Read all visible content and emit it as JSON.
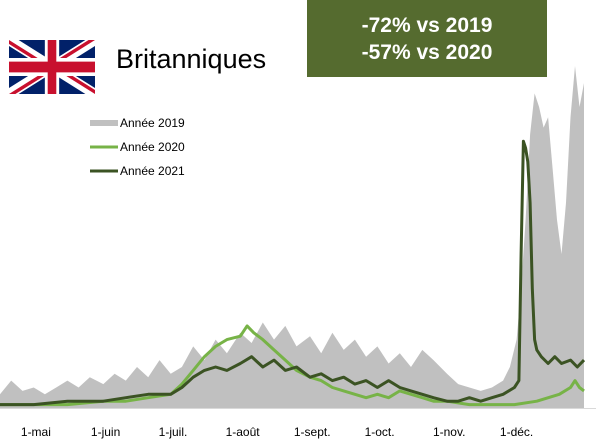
{
  "header": {
    "title": "Britanniques",
    "stats": [
      "-72% vs 2019",
      "-57% vs 2020"
    ]
  },
  "colors": {
    "flag_blue": "#012169",
    "flag_red": "#C8102E",
    "stats_box_bg": "#556B2F",
    "s2019": "#C0C0C0",
    "s2020": "#77B347",
    "s2021": "#3B5323"
  },
  "chart_data": {
    "type": "area",
    "xlim": [
      "2021-04-15",
      "2021-12-31"
    ],
    "x_ticks": [
      {
        "date": "2021-05-01",
        "label": "1-mai"
      },
      {
        "date": "2021-06-01",
        "label": "1-juin"
      },
      {
        "date": "2021-07-01",
        "label": "1-juil."
      },
      {
        "date": "2021-08-01",
        "label": "1-août"
      },
      {
        "date": "2021-09-01",
        "label": "1-sept."
      },
      {
        "date": "2021-10-01",
        "label": "1-oct."
      },
      {
        "date": "2021-11-01",
        "label": "1-nov."
      },
      {
        "date": "2021-12-01",
        "label": "1-déc."
      }
    ],
    "ylim": [
      0,
      100
    ],
    "y_axis_labels": false,
    "legend_position": "top-left",
    "series": [
      {
        "name": "Année 2019",
        "style": "area",
        "color": "#C0C0C0",
        "points": [
          [
            "2021-04-15",
            4
          ],
          [
            "2021-04-20",
            8
          ],
          [
            "2021-04-25",
            5
          ],
          [
            "2021-04-30",
            6
          ],
          [
            "2021-05-05",
            4
          ],
          [
            "2021-05-10",
            6
          ],
          [
            "2021-05-15",
            8
          ],
          [
            "2021-05-20",
            6
          ],
          [
            "2021-05-25",
            9
          ],
          [
            "2021-05-31",
            7
          ],
          [
            "2021-06-05",
            10
          ],
          [
            "2021-06-10",
            8
          ],
          [
            "2021-06-15",
            12
          ],
          [
            "2021-06-20",
            9
          ],
          [
            "2021-06-25",
            14
          ],
          [
            "2021-06-30",
            10
          ],
          [
            "2021-07-05",
            12
          ],
          [
            "2021-07-10",
            18
          ],
          [
            "2021-07-15",
            14
          ],
          [
            "2021-07-20",
            20
          ],
          [
            "2021-07-25",
            16
          ],
          [
            "2021-07-31",
            22
          ],
          [
            "2021-08-05",
            19
          ],
          [
            "2021-08-10",
            25
          ],
          [
            "2021-08-15",
            20
          ],
          [
            "2021-08-20",
            24
          ],
          [
            "2021-08-25",
            18
          ],
          [
            "2021-08-31",
            21
          ],
          [
            "2021-09-05",
            16
          ],
          [
            "2021-09-10",
            22
          ],
          [
            "2021-09-15",
            17
          ],
          [
            "2021-09-20",
            20
          ],
          [
            "2021-09-25",
            15
          ],
          [
            "2021-09-30",
            18
          ],
          [
            "2021-10-05",
            13
          ],
          [
            "2021-10-10",
            16
          ],
          [
            "2021-10-15",
            12
          ],
          [
            "2021-10-20",
            17
          ],
          [
            "2021-10-25",
            14
          ],
          [
            "2021-10-31",
            10
          ],
          [
            "2021-11-05",
            7
          ],
          [
            "2021-11-10",
            6
          ],
          [
            "2021-11-15",
            5
          ],
          [
            "2021-11-20",
            6
          ],
          [
            "2021-11-25",
            8
          ],
          [
            "2021-11-28",
            12
          ],
          [
            "2021-12-01",
            20
          ],
          [
            "2021-12-03",
            35
          ],
          [
            "2021-12-05",
            55
          ],
          [
            "2021-12-07",
            80
          ],
          [
            "2021-12-09",
            92
          ],
          [
            "2021-12-11",
            88
          ],
          [
            "2021-12-13",
            82
          ],
          [
            "2021-12-15",
            85
          ],
          [
            "2021-12-17",
            70
          ],
          [
            "2021-12-19",
            55
          ],
          [
            "2021-12-21",
            45
          ],
          [
            "2021-12-23",
            60
          ],
          [
            "2021-12-25",
            85
          ],
          [
            "2021-12-27",
            100
          ],
          [
            "2021-12-29",
            88
          ],
          [
            "2021-12-31",
            95
          ]
        ]
      },
      {
        "name": "Année 2020",
        "style": "line",
        "color": "#77B347",
        "points": [
          [
            "2021-04-15",
            1
          ],
          [
            "2021-04-30",
            1
          ],
          [
            "2021-05-15",
            1
          ],
          [
            "2021-05-31",
            2
          ],
          [
            "2021-06-10",
            2
          ],
          [
            "2021-06-20",
            3
          ],
          [
            "2021-06-30",
            4
          ],
          [
            "2021-07-05",
            7
          ],
          [
            "2021-07-10",
            11
          ],
          [
            "2021-07-15",
            15
          ],
          [
            "2021-07-20",
            18
          ],
          [
            "2021-07-25",
            20
          ],
          [
            "2021-07-31",
            21
          ],
          [
            "2021-08-03",
            24
          ],
          [
            "2021-08-06",
            22
          ],
          [
            "2021-08-10",
            20
          ],
          [
            "2021-08-15",
            17
          ],
          [
            "2021-08-20",
            14
          ],
          [
            "2021-08-25",
            11
          ],
          [
            "2021-08-31",
            9
          ],
          [
            "2021-09-05",
            8
          ],
          [
            "2021-09-10",
            6
          ],
          [
            "2021-09-15",
            5
          ],
          [
            "2021-09-20",
            4
          ],
          [
            "2021-09-25",
            3
          ],
          [
            "2021-09-30",
            4
          ],
          [
            "2021-10-05",
            3
          ],
          [
            "2021-10-10",
            5
          ],
          [
            "2021-10-15",
            4
          ],
          [
            "2021-10-20",
            3
          ],
          [
            "2021-10-25",
            2
          ],
          [
            "2021-10-31",
            2
          ],
          [
            "2021-11-10",
            1
          ],
          [
            "2021-11-20",
            1
          ],
          [
            "2021-11-30",
            1
          ],
          [
            "2021-12-10",
            2
          ],
          [
            "2021-12-20",
            4
          ],
          [
            "2021-12-25",
            6
          ],
          [
            "2021-12-27",
            8
          ],
          [
            "2021-12-29",
            6
          ],
          [
            "2021-12-31",
            5
          ]
        ]
      },
      {
        "name": "Année 2021",
        "style": "line",
        "color": "#3B5323",
        "points": [
          [
            "2021-04-15",
            1
          ],
          [
            "2021-04-30",
            1
          ],
          [
            "2021-05-15",
            2
          ],
          [
            "2021-05-31",
            2
          ],
          [
            "2021-06-10",
            3
          ],
          [
            "2021-06-20",
            4
          ],
          [
            "2021-06-30",
            4
          ],
          [
            "2021-07-05",
            6
          ],
          [
            "2021-07-10",
            9
          ],
          [
            "2021-07-15",
            11
          ],
          [
            "2021-07-20",
            12
          ],
          [
            "2021-07-25",
            11
          ],
          [
            "2021-07-31",
            13
          ],
          [
            "2021-08-05",
            15
          ],
          [
            "2021-08-10",
            12
          ],
          [
            "2021-08-15",
            14
          ],
          [
            "2021-08-20",
            11
          ],
          [
            "2021-08-25",
            12
          ],
          [
            "2021-08-31",
            9
          ],
          [
            "2021-09-05",
            10
          ],
          [
            "2021-09-10",
            8
          ],
          [
            "2021-09-15",
            9
          ],
          [
            "2021-09-20",
            7
          ],
          [
            "2021-09-25",
            8
          ],
          [
            "2021-09-30",
            6
          ],
          [
            "2021-10-05",
            8
          ],
          [
            "2021-10-10",
            6
          ],
          [
            "2021-10-15",
            5
          ],
          [
            "2021-10-20",
            4
          ],
          [
            "2021-10-25",
            3
          ],
          [
            "2021-10-31",
            2
          ],
          [
            "2021-11-05",
            2
          ],
          [
            "2021-11-10",
            3
          ],
          [
            "2021-11-15",
            2
          ],
          [
            "2021-11-20",
            3
          ],
          [
            "2021-11-25",
            4
          ],
          [
            "2021-11-30",
            6
          ],
          [
            "2021-12-02",
            8
          ],
          [
            "2021-12-03",
            45
          ],
          [
            "2021-12-04",
            78
          ],
          [
            "2021-12-05",
            76
          ],
          [
            "2021-12-06",
            72
          ],
          [
            "2021-12-07",
            60
          ],
          [
            "2021-12-08",
            35
          ],
          [
            "2021-12-09",
            20
          ],
          [
            "2021-12-10",
            17
          ],
          [
            "2021-12-12",
            15
          ],
          [
            "2021-12-15",
            13
          ],
          [
            "2021-12-18",
            15
          ],
          [
            "2021-12-21",
            13
          ],
          [
            "2021-12-25",
            14
          ],
          [
            "2021-12-28",
            12
          ],
          [
            "2021-12-31",
            14
          ]
        ]
      }
    ]
  }
}
